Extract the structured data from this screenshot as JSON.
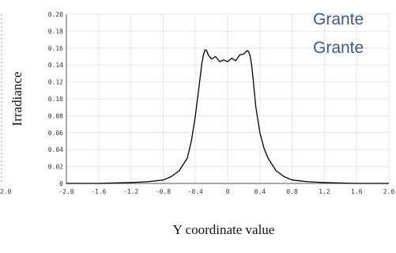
{
  "chart_data": {
    "type": "line",
    "xlabel": "Y coordinate value",
    "ylabel": "Irradiance",
    "xlim": [
      -2.0,
      2.0
    ],
    "ylim": [
      0,
      0.2
    ],
    "x_ticks": [
      "-2.0",
      "-1.6",
      "-1.2",
      "-0.8",
      "-0.4",
      "0",
      "0.4",
      "0.8",
      "1.2",
      "1.6",
      "2.0"
    ],
    "y_ticks": [
      "0",
      "0.02",
      "0.04",
      "0.06",
      "0.08",
      "0.10",
      "0.12",
      "0.14",
      "0.16",
      "0.18",
      "0.20"
    ],
    "left_fragment_tick": "2.0",
    "grid": true,
    "line_color": "#000000",
    "series": [
      {
        "x": [
          -2.0,
          -1.6,
          -1.2,
          -1.0,
          -0.8,
          -0.7,
          -0.6,
          -0.5,
          -0.45,
          -0.4,
          -0.35,
          -0.32,
          -0.3,
          -0.28,
          -0.26,
          -0.24,
          -0.2,
          -0.15,
          -0.1,
          -0.05,
          0.0,
          0.05,
          0.1,
          0.15,
          0.2,
          0.24,
          0.26,
          0.28,
          0.3,
          0.32,
          0.35,
          0.4,
          0.45,
          0.5,
          0.6,
          0.7,
          0.8,
          1.0,
          1.2,
          1.6,
          2.0
        ],
        "y": [
          0.0,
          0.0,
          0.001,
          0.002,
          0.004,
          0.008,
          0.015,
          0.03,
          0.05,
          0.08,
          0.118,
          0.142,
          0.152,
          0.158,
          0.157,
          0.152,
          0.147,
          0.15,
          0.144,
          0.146,
          0.144,
          0.148,
          0.145,
          0.152,
          0.153,
          0.157,
          0.156,
          0.15,
          0.138,
          0.12,
          0.09,
          0.06,
          0.042,
          0.03,
          0.015,
          0.008,
          0.004,
          0.002,
          0.001,
          0.0,
          0.0
        ]
      }
    ]
  },
  "overlay": {
    "line1": "Grante",
    "line2": "Grante"
  }
}
